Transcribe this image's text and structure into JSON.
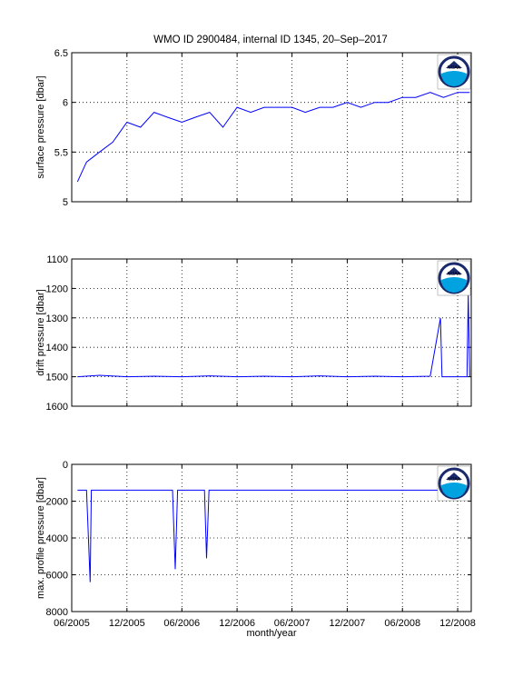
{
  "figure": {
    "title": "WMO ID 2900484, internal ID 1345, 20–Sep–2017",
    "xlabel": "month/year",
    "logo_text": "NOAA"
  },
  "colors": {
    "line": "#0000ff",
    "axis": "#000000",
    "grid": "#000000",
    "logo_ring": "#1a2a6c",
    "logo_water": "#00a3e0"
  },
  "chart_data": [
    {
      "type": "line",
      "ylabel": "surface pressure [dbar]",
      "ylim": [
        5,
        6.5
      ],
      "yreversed": false,
      "yticks": [
        5,
        5.5,
        6,
        6.5
      ],
      "ytick_labels": [
        "5",
        "5.5",
        "6",
        "6.5"
      ],
      "grid": true,
      "x": [
        "2005-06-20",
        "2005-07-20",
        "2005-09-01",
        "2005-10-15",
        "2005-12-01",
        "2006-01-15",
        "2006-03-01",
        "2006-04-15",
        "2006-06-01",
        "2006-07-15",
        "2006-09-01",
        "2006-10-15",
        "2006-12-01",
        "2007-01-15",
        "2007-03-01",
        "2007-04-15",
        "2007-06-01",
        "2007-07-15",
        "2007-09-01",
        "2007-10-15",
        "2007-12-01",
        "2008-01-15",
        "2008-03-01",
        "2008-04-15",
        "2008-06-01",
        "2008-07-15",
        "2008-09-01",
        "2008-10-15",
        "2008-12-01",
        "2009-01-10"
      ],
      "series": [
        {
          "values": [
            5.2,
            5.4,
            5.5,
            5.6,
            5.8,
            5.75,
            5.9,
            5.85,
            5.8,
            5.85,
            5.9,
            5.75,
            5.95,
            5.9,
            5.95,
            5.95,
            5.95,
            5.9,
            5.95,
            5.95,
            6.0,
            5.95,
            6.0,
            6.0,
            6.05,
            6.05,
            6.1,
            6.05,
            6.1,
            6.1
          ]
        }
      ]
    },
    {
      "type": "line",
      "ylabel": "drift pressure [dbar]",
      "ylim": [
        1100,
        1600
      ],
      "yreversed": true,
      "yticks": [
        1100,
        1200,
        1300,
        1400,
        1500,
        1600
      ],
      "ytick_labels": [
        "1100",
        "1200",
        "1300",
        "1400",
        "1500",
        "1600"
      ],
      "grid": true,
      "x": [
        "2005-06-20",
        "2005-09-01",
        "2005-12-01",
        "2006-03-01",
        "2006-06-01",
        "2006-09-01",
        "2006-12-01",
        "2007-03-01",
        "2007-06-01",
        "2007-09-01",
        "2007-12-01",
        "2008-03-01",
        "2008-06-01",
        "2008-09-01",
        "2008-10-05",
        "2008-10-10",
        "2008-10-15",
        "2008-12-01",
        "2009-01-01",
        "2009-01-05",
        "2009-01-10"
      ],
      "series": [
        {
          "values": [
            1500,
            1495,
            1500,
            1498,
            1500,
            1497,
            1500,
            1498,
            1500,
            1497,
            1500,
            1498,
            1500,
            1498,
            1300,
            1500,
            1500,
            1500,
            1500,
            1220,
            1500
          ]
        }
      ]
    },
    {
      "type": "line",
      "ylabel": "max. profile pressure [dbar]",
      "ylim": [
        0,
        8000
      ],
      "yreversed": true,
      "yticks": [
        0,
        2000,
        4000,
        6000,
        8000
      ],
      "ytick_labels": [
        "0",
        "2000",
        "4000",
        "6000",
        "8000"
      ],
      "grid": true,
      "x": [
        "2005-06-20",
        "2005-07-20",
        "2005-08-01",
        "2005-08-05",
        "2005-08-12",
        "2006-05-01",
        "2006-05-10",
        "2006-05-18",
        "2006-08-15",
        "2006-08-22",
        "2006-08-30",
        "2009-01-10"
      ],
      "series": [
        {
          "values": [
            1400,
            1400,
            6400,
            1400,
            1400,
            1400,
            5700,
            1400,
            1400,
            5100,
            1400,
            1400
          ]
        }
      ]
    }
  ],
  "xaxis": {
    "start": "2005-06-01",
    "end": "2009-01-15",
    "ticks": [
      "2005-06-01",
      "2005-12-01",
      "2006-06-01",
      "2006-12-01",
      "2007-06-01",
      "2007-12-01",
      "2008-06-01",
      "2008-12-01"
    ],
    "tick_labels": [
      "06/2005",
      "12/2005",
      "06/2006",
      "12/2006",
      "06/2007",
      "12/2007",
      "06/2008",
      "12/2008"
    ]
  }
}
